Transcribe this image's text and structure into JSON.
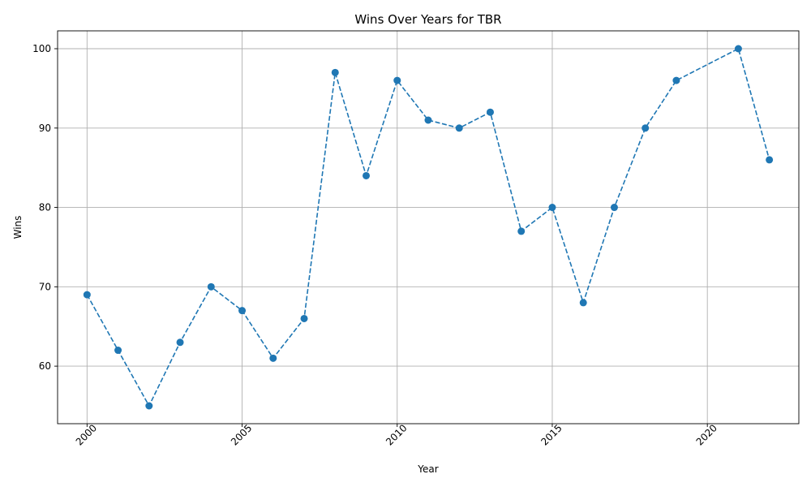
{
  "chart_data": {
    "type": "line",
    "title": "Wins Over Years for TBR",
    "xlabel": "Year",
    "ylabel": "Wins",
    "xlim": [
      1999.05,
      2022.95
    ],
    "ylim": [
      52.75,
      102.25
    ],
    "xticks": [
      2000,
      2005,
      2010,
      2015,
      2020
    ],
    "yticks": [
      60,
      70,
      80,
      90,
      100
    ],
    "grid": true,
    "line_style": "dashed",
    "marker": "circle",
    "color": "#1f77b4",
    "series": [
      {
        "x": [
          2000,
          2001,
          2002,
          2003,
          2004,
          2005,
          2006,
          2007,
          2008,
          2009,
          2010,
          2011,
          2012,
          2013,
          2014,
          2015,
          2016,
          2017,
          2018,
          2019,
          2021,
          2022
        ],
        "y": [
          69,
          62,
          55,
          63,
          70,
          67,
          61,
          66,
          97,
          84,
          96,
          91,
          90,
          92,
          77,
          80,
          68,
          80,
          90,
          96,
          100,
          86
        ]
      }
    ]
  }
}
